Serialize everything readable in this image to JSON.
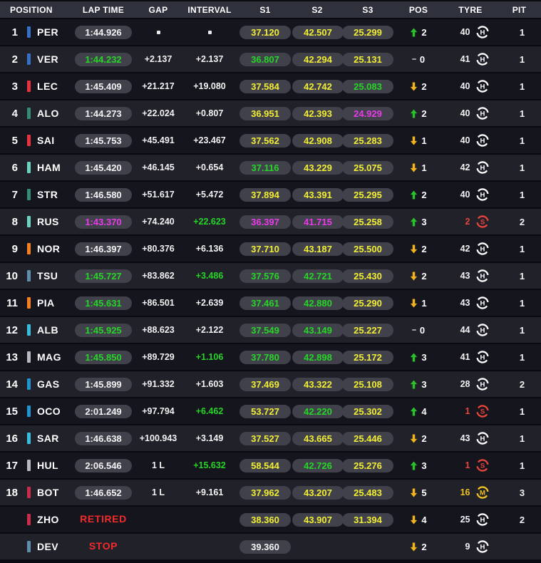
{
  "colors": {
    "yellow": "#F1EE33",
    "green": "#26D626",
    "purple": "#E93BE9",
    "white": "#F2F2F2",
    "red": "#F32B2B",
    "gain_green": "#2BC12B",
    "loss_amber": "#F2B31C",
    "neutral_gray": "#9B9BA3",
    "tyre": {
      "H": "#FFFFFF",
      "M": "#F0C323",
      "S": "#E8453C"
    }
  },
  "table": {
    "headers": [
      "POSITION",
      "LAP TIME",
      "GAP",
      "INTERVAL",
      "S1",
      "S2",
      "S3",
      "POS",
      "TYRE",
      "PIT"
    ],
    "rows": [
      {
        "position": "1",
        "driver": "PER",
        "team_color": "#3671C6",
        "lap_time": "1:44.926",
        "lap_time_color": "white",
        "lap_time_type": "pill",
        "gap": "-",
        "interval": "-",
        "interval_color": "white",
        "s1": "37.120",
        "s1_color": "yellow",
        "s2": "42.507",
        "s2_color": "yellow",
        "s3": "25.299",
        "s3_color": "yellow",
        "pos_change_dir": "up",
        "pos_change": "2",
        "tyre_age": "40",
        "tyre_compound": "H",
        "pit": "1"
      },
      {
        "position": "2",
        "driver": "VER",
        "team_color": "#3671C6",
        "lap_time": "1:44.232",
        "lap_time_color": "green",
        "lap_time_type": "pill",
        "gap": "+2.137",
        "interval": "+2.137",
        "interval_color": "white",
        "s1": "36.807",
        "s1_color": "green",
        "s2": "42.294",
        "s2_color": "yellow",
        "s3": "25.131",
        "s3_color": "yellow",
        "pos_change_dir": "none",
        "pos_change": "0",
        "tyre_age": "41",
        "tyre_compound": "H",
        "pit": "1"
      },
      {
        "position": "3",
        "driver": "LEC",
        "team_color": "#E8323F",
        "lap_time": "1:45.409",
        "lap_time_color": "white",
        "lap_time_type": "pill",
        "gap": "+21.217",
        "interval": "+19.080",
        "interval_color": "white",
        "s1": "37.584",
        "s1_color": "yellow",
        "s2": "42.742",
        "s2_color": "yellow",
        "s3": "25.083",
        "s3_color": "green",
        "pos_change_dir": "down",
        "pos_change": "2",
        "tyre_age": "40",
        "tyre_compound": "H",
        "pit": "1"
      },
      {
        "position": "4",
        "driver": "ALO",
        "team_color": "#358C75",
        "lap_time": "1:44.273",
        "lap_time_color": "white",
        "lap_time_type": "pill",
        "gap": "+22.024",
        "interval": "+0.807",
        "interval_color": "white",
        "s1": "36.951",
        "s1_color": "yellow",
        "s2": "42.393",
        "s2_color": "yellow",
        "s3": "24.929",
        "s3_color": "purple",
        "pos_change_dir": "up",
        "pos_change": "2",
        "tyre_age": "40",
        "tyre_compound": "H",
        "pit": "1"
      },
      {
        "position": "5",
        "driver": "SAI",
        "team_color": "#E8323F",
        "lap_time": "1:45.753",
        "lap_time_color": "white",
        "lap_time_type": "pill",
        "gap": "+45.491",
        "interval": "+23.467",
        "interval_color": "white",
        "s1": "37.562",
        "s1_color": "yellow",
        "s2": "42.908",
        "s2_color": "yellow",
        "s3": "25.283",
        "s3_color": "yellow",
        "pos_change_dir": "down",
        "pos_change": "1",
        "tyre_age": "40",
        "tyre_compound": "H",
        "pit": "1"
      },
      {
        "position": "6",
        "driver": "HAM",
        "team_color": "#6CD3BF",
        "lap_time": "1:45.420",
        "lap_time_color": "white",
        "lap_time_type": "pill",
        "gap": "+46.145",
        "interval": "+0.654",
        "interval_color": "white",
        "s1": "37.116",
        "s1_color": "green",
        "s2": "43.229",
        "s2_color": "yellow",
        "s3": "25.075",
        "s3_color": "yellow",
        "pos_change_dir": "down",
        "pos_change": "1",
        "tyre_age": "42",
        "tyre_compound": "H",
        "pit": "1"
      },
      {
        "position": "7",
        "driver": "STR",
        "team_color": "#358C75",
        "lap_time": "1:46.580",
        "lap_time_color": "white",
        "lap_time_type": "pill",
        "gap": "+51.617",
        "interval": "+5.472",
        "interval_color": "white",
        "s1": "37.894",
        "s1_color": "yellow",
        "s2": "43.391",
        "s2_color": "yellow",
        "s3": "25.295",
        "s3_color": "yellow",
        "pos_change_dir": "up",
        "pos_change": "2",
        "tyre_age": "40",
        "tyre_compound": "H",
        "pit": "1"
      },
      {
        "position": "8",
        "driver": "RUS",
        "team_color": "#6CD3BF",
        "lap_time": "1:43.370",
        "lap_time_color": "purple",
        "lap_time_type": "pill",
        "gap": "+74.240",
        "interval": "+22.623",
        "interval_color": "green",
        "s1": "36.397",
        "s1_color": "purple",
        "s2": "41.715",
        "s2_color": "purple",
        "s3": "25.258",
        "s3_color": "yellow",
        "pos_change_dir": "up",
        "pos_change": "3",
        "tyre_age": "2",
        "tyre_compound": "S",
        "pit": "2"
      },
      {
        "position": "9",
        "driver": "NOR",
        "team_color": "#F58020",
        "lap_time": "1:46.397",
        "lap_time_color": "white",
        "lap_time_type": "pill",
        "gap": "+80.376",
        "interval": "+6.136",
        "interval_color": "white",
        "s1": "37.710",
        "s1_color": "yellow",
        "s2": "43.187",
        "s2_color": "yellow",
        "s3": "25.500",
        "s3_color": "yellow",
        "pos_change_dir": "down",
        "pos_change": "2",
        "tyre_age": "42",
        "tyre_compound": "H",
        "pit": "1"
      },
      {
        "position": "10",
        "driver": "TSU",
        "team_color": "#5E8FAA",
        "lap_time": "1:45.727",
        "lap_time_color": "green",
        "lap_time_type": "pill",
        "gap": "+83.862",
        "interval": "+3.486",
        "interval_color": "green",
        "s1": "37.576",
        "s1_color": "green",
        "s2": "42.721",
        "s2_color": "green",
        "s3": "25.430",
        "s3_color": "yellow",
        "pos_change_dir": "down",
        "pos_change": "2",
        "tyre_age": "43",
        "tyre_compound": "H",
        "pit": "1"
      },
      {
        "position": "11",
        "driver": "PIA",
        "team_color": "#F58020",
        "lap_time": "1:45.631",
        "lap_time_color": "green",
        "lap_time_type": "pill",
        "gap": "+86.501",
        "interval": "+2.639",
        "interval_color": "white",
        "s1": "37.461",
        "s1_color": "green",
        "s2": "42.880",
        "s2_color": "green",
        "s3": "25.290",
        "s3_color": "yellow",
        "pos_change_dir": "down",
        "pos_change": "1",
        "tyre_age": "43",
        "tyre_compound": "H",
        "pit": "1"
      },
      {
        "position": "12",
        "driver": "ALB",
        "team_color": "#37BEDD",
        "lap_time": "1:45.925",
        "lap_time_color": "green",
        "lap_time_type": "pill",
        "gap": "+88.623",
        "interval": "+2.122",
        "interval_color": "white",
        "s1": "37.549",
        "s1_color": "green",
        "s2": "43.149",
        "s2_color": "green",
        "s3": "25.227",
        "s3_color": "yellow",
        "pos_change_dir": "none",
        "pos_change": "0",
        "tyre_age": "44",
        "tyre_compound": "H",
        "pit": "1"
      },
      {
        "position": "13",
        "driver": "MAG",
        "team_color": "#B6BABD",
        "lap_time": "1:45.850",
        "lap_time_color": "green",
        "lap_time_type": "pill",
        "gap": "+89.729",
        "interval": "+1.106",
        "interval_color": "green",
        "s1": "37.780",
        "s1_color": "green",
        "s2": "42.898",
        "s2_color": "green",
        "s3": "25.172",
        "s3_color": "yellow",
        "pos_change_dir": "up",
        "pos_change": "3",
        "tyre_age": "41",
        "tyre_compound": "H",
        "pit": "1"
      },
      {
        "position": "14",
        "driver": "GAS",
        "team_color": "#2293D1",
        "lap_time": "1:45.899",
        "lap_time_color": "white",
        "lap_time_type": "pill",
        "gap": "+91.332",
        "interval": "+1.603",
        "interval_color": "white",
        "s1": "37.469",
        "s1_color": "yellow",
        "s2": "43.322",
        "s2_color": "yellow",
        "s3": "25.108",
        "s3_color": "yellow",
        "pos_change_dir": "up",
        "pos_change": "3",
        "tyre_age": "28",
        "tyre_compound": "H",
        "pit": "2"
      },
      {
        "position": "15",
        "driver": "OCO",
        "team_color": "#2293D1",
        "lap_time": "2:01.249",
        "lap_time_color": "white",
        "lap_time_type": "pill",
        "gap": "+97.794",
        "interval": "+6.462",
        "interval_color": "green",
        "s1": "53.727",
        "s1_color": "yellow",
        "s2": "42.220",
        "s2_color": "green",
        "s3": "25.302",
        "s3_color": "yellow",
        "pos_change_dir": "up",
        "pos_change": "4",
        "tyre_age": "1",
        "tyre_compound": "S",
        "pit": "1"
      },
      {
        "position": "16",
        "driver": "SAR",
        "team_color": "#37BEDD",
        "lap_time": "1:46.638",
        "lap_time_color": "white",
        "lap_time_type": "pill",
        "gap": "+100.943",
        "interval": "+3.149",
        "interval_color": "white",
        "s1": "37.527",
        "s1_color": "yellow",
        "s2": "43.665",
        "s2_color": "yellow",
        "s3": "25.446",
        "s3_color": "yellow",
        "pos_change_dir": "down",
        "pos_change": "2",
        "tyre_age": "43",
        "tyre_compound": "H",
        "pit": "1"
      },
      {
        "position": "17",
        "driver": "HUL",
        "team_color": "#B6BABD",
        "lap_time": "2:06.546",
        "lap_time_color": "white",
        "lap_time_type": "pill",
        "gap": "1 L",
        "interval": "+15.632",
        "interval_color": "green",
        "s1": "58.544",
        "s1_color": "yellow",
        "s2": "42.726",
        "s2_color": "green",
        "s3": "25.276",
        "s3_color": "yellow",
        "pos_change_dir": "up",
        "pos_change": "3",
        "tyre_age": "1",
        "tyre_compound": "S",
        "pit": "1"
      },
      {
        "position": "18",
        "driver": "BOT",
        "team_color": "#C92D4B",
        "lap_time": "1:46.652",
        "lap_time_color": "white",
        "lap_time_type": "pill",
        "gap": "1 L",
        "interval": "+9.161",
        "interval_color": "white",
        "s1": "37.962",
        "s1_color": "yellow",
        "s2": "43.207",
        "s2_color": "yellow",
        "s3": "25.483",
        "s3_color": "yellow",
        "pos_change_dir": "down",
        "pos_change": "5",
        "tyre_age": "16",
        "tyre_compound": "M",
        "pit": "3"
      },
      {
        "position": "",
        "driver": "ZHO",
        "team_color": "#C92D4B",
        "lap_time": "RETIRED",
        "lap_time_color": "red",
        "lap_time_type": "status",
        "gap": "",
        "interval": "",
        "interval_color": "white",
        "s1": "38.360",
        "s1_color": "yellow",
        "s2": "43.907",
        "s2_color": "yellow",
        "s3": "31.394",
        "s3_color": "yellow",
        "pos_change_dir": "down",
        "pos_change": "4",
        "tyre_age": "25",
        "tyre_compound": "H",
        "pit": "2"
      },
      {
        "position": "",
        "driver": "DEV",
        "team_color": "#5E8FAA",
        "lap_time": "STOP",
        "lap_time_color": "red",
        "lap_time_type": "status",
        "gap": "",
        "interval": "",
        "interval_color": "white",
        "s1": "39.360",
        "s1_color": "white",
        "s2": "",
        "s2_color": "white",
        "s3": "",
        "s3_color": "white",
        "pos_change_dir": "down",
        "pos_change": "2",
        "tyre_age": "9",
        "tyre_compound": "H",
        "pit": ""
      }
    ]
  }
}
